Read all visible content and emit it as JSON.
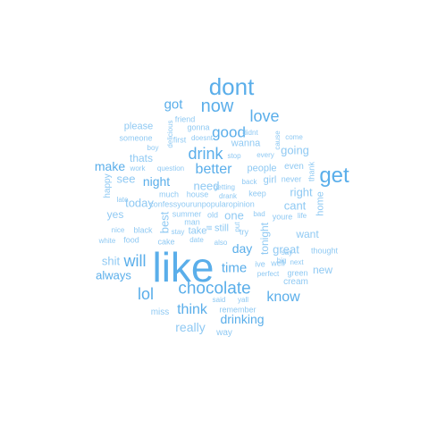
{
  "colors": {
    "dark": "#5aaeea",
    "light": "#8fc9f3"
  },
  "words": [
    "like",
    "dont",
    "get",
    "chocolate",
    "now",
    "drink",
    "love",
    "good",
    "lol",
    "will",
    "know",
    "think",
    "got",
    "better",
    "time",
    "drinking",
    "night",
    "make",
    "day",
    "always",
    "shit",
    "really",
    "need",
    "today",
    "see",
    "right",
    "one",
    "going",
    "cant",
    "great",
    "new",
    "please",
    "thats",
    "yes",
    "best",
    "want",
    "tonight",
    "people",
    "girl",
    "home",
    "wanna",
    "even",
    "still",
    "take",
    "way",
    "miss",
    "cream",
    "thank",
    "man",
    "confessyourunpopularopinion",
    "happy",
    "house",
    "much",
    "summer",
    "getting",
    "keep",
    "back",
    "never",
    "youre",
    "cause",
    "come",
    "first",
    "friend",
    "gonna",
    "didnt",
    "doesnt",
    "someone",
    "question",
    "work",
    "boy",
    "delicious",
    "every",
    "stop",
    "late",
    "drank",
    "old",
    "bad",
    "life",
    "white",
    "food",
    "nice",
    "black",
    "stay",
    "cake",
    "date",
    "also",
    "ive",
    "well",
    "next",
    "thought",
    "green",
    "perfect",
    "big",
    "say",
    "said",
    "yall",
    "remember",
    "try",
    "put",
    "ill"
  ]
}
